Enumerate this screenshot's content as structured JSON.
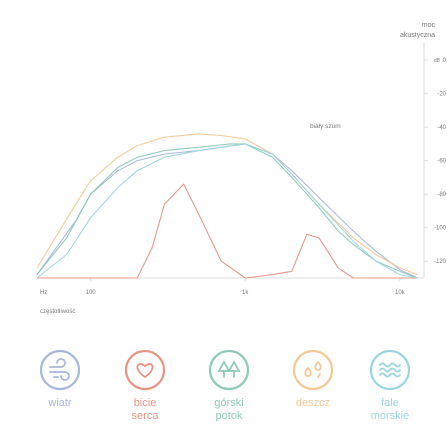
{
  "chart_data": {
    "type": "line",
    "xlabel": "częstotliwość",
    "x_unit": "Hz",
    "xscale": "log",
    "xlim": [
      45,
      13500
    ],
    "x_ticks": [
      {
        "value": 100,
        "label": "100"
      },
      {
        "value": 1000,
        "label": "1k"
      },
      {
        "value": 10000,
        "label": "10k"
      }
    ],
    "ylabel": "moc akustyczna",
    "y_unit": "dB",
    "ylim": [
      -130,
      12
    ],
    "y_ticks": [
      0,
      -20,
      -40,
      -60,
      -80,
      -100,
      -120
    ],
    "grid": false,
    "annotation": "biały szum",
    "series": [
      {
        "key": "wind",
        "color": "#a8b8dc",
        "x": [
          45,
          60,
          80,
          100,
          150,
          200,
          300,
          500,
          700,
          1000,
          1500,
          2000,
          3000,
          5000,
          7000,
          10000,
          13000
        ],
        "y": [
          -128,
          -112,
          -96,
          -80,
          -66,
          -60,
          -56,
          -54,
          -52,
          -50,
          -56,
          -66,
          -82,
          -102,
          -114,
          -125,
          -130
        ]
      },
      {
        "key": "heartbeat",
        "color": "#e89484",
        "x": [
          45,
          200,
          250,
          300,
          400,
          500,
          700,
          1000,
          1500,
          2000,
          2500,
          3000,
          4000,
          5000,
          7000,
          13000
        ],
        "y": [
          -130,
          -130,
          -112,
          -86,
          -74,
          -92,
          -120,
          -130,
          -128,
          -126,
          -104,
          -106,
          -124,
          -130,
          -130,
          -130
        ]
      },
      {
        "key": "mountain_stream",
        "color": "#8ec9ba",
        "x": [
          45,
          70,
          100,
          150,
          200,
          300,
          500,
          800,
          1000,
          1500,
          2000,
          3000,
          4000,
          5000,
          7000,
          10000,
          13000
        ],
        "y": [
          -128,
          -106,
          -80,
          -64,
          -58,
          -54,
          -52,
          -50,
          -50,
          -58,
          -70,
          -88,
          -102,
          -110,
          -120,
          -126,
          -130
        ]
      },
      {
        "key": "rain",
        "color": "#f3c997",
        "x": [
          45,
          80,
          100,
          150,
          200,
          300,
          500,
          700,
          1000,
          1500,
          2000,
          3000,
          5000,
          7000,
          10000,
          13000
        ],
        "y": [
          -124,
          -86,
          -72,
          -58,
          -51,
          -46,
          -44,
          -45,
          -47,
          -56,
          -68,
          -86,
          -106,
          -116,
          -124,
          -128
        ]
      },
      {
        "key": "sea_waves",
        "color": "#9cd5e2",
        "x": [
          45,
          70,
          100,
          150,
          200,
          300,
          500,
          700,
          1000,
          1500,
          2000,
          3000,
          5000,
          7000,
          10000,
          13000
        ],
        "y": [
          -130,
          -116,
          -94,
          -76,
          -66,
          -58,
          -54,
          -52,
          -50,
          -56,
          -68,
          -86,
          -108,
          -120,
          -128,
          -130
        ]
      }
    ]
  },
  "legend": [
    {
      "key": "wind",
      "icon": "wind-icon",
      "label_lines": [
        "wiatr"
      ],
      "color": "#a8b8dc"
    },
    {
      "key": "heartbeat",
      "icon": "heart-icon",
      "label_lines": [
        "bicie",
        "serca"
      ],
      "color": "#e89484"
    },
    {
      "key": "mountain_stream",
      "icon": "trees-icon",
      "label_lines": [
        "górski",
        "potok"
      ],
      "color": "#8ec9ba"
    },
    {
      "key": "rain",
      "icon": "rain-drops-icon",
      "label_lines": [
        "deszcz"
      ],
      "color": "#f3c997"
    },
    {
      "key": "sea_waves",
      "icon": "waves-icon",
      "label_lines": [
        "fale",
        "morskie"
      ],
      "color": "#9cd5e2"
    }
  ],
  "ylabel_lines": [
    "moc",
    "akustyczna"
  ],
  "y_unit_label": "dB",
  "x_unit_label": "Hz",
  "colors": {
    "axis": "#dcdcdc",
    "text": "#777777"
  }
}
